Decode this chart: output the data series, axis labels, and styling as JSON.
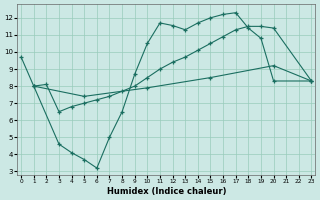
{
  "xlabel": "Humidex (Indice chaleur)",
  "bg_color": "#cce8e4",
  "grid_color": "#99ccbb",
  "line_color": "#1a6e60",
  "xlim": [
    -0.3,
    23.3
  ],
  "ylim": [
    2.8,
    12.8
  ],
  "yticks": [
    3,
    4,
    5,
    6,
    7,
    8,
    9,
    10,
    11,
    12
  ],
  "xticks": [
    0,
    1,
    2,
    3,
    4,
    5,
    6,
    7,
    8,
    9,
    10,
    11,
    12,
    13,
    14,
    15,
    16,
    17,
    18,
    19,
    20,
    21,
    22,
    23
  ],
  "line_outer": {
    "x": [
      0,
      1,
      3,
      4,
      5,
      6,
      7,
      8,
      9,
      10,
      11,
      12,
      13,
      14,
      15,
      16,
      17,
      18,
      19,
      20,
      23
    ],
    "y": [
      9.7,
      8.0,
      4.6,
      4.1,
      3.7,
      3.2,
      5.0,
      6.5,
      8.7,
      10.5,
      11.7,
      11.55,
      11.3,
      11.7,
      12.0,
      12.2,
      12.3,
      11.4,
      10.8,
      8.3,
      8.3
    ]
  },
  "line_middle": {
    "x": [
      1,
      2,
      3,
      4,
      5,
      6,
      7,
      8,
      9,
      10,
      11,
      12,
      13,
      14,
      15,
      16,
      17,
      18,
      19,
      20,
      23
    ],
    "y": [
      8.0,
      8.1,
      6.5,
      6.8,
      7.0,
      7.2,
      7.4,
      7.7,
      8.0,
      8.5,
      9.0,
      9.4,
      9.7,
      10.1,
      10.5,
      10.9,
      11.3,
      11.5,
      11.5,
      11.4,
      8.3
    ]
  },
  "line_bottom": {
    "x": [
      1,
      5,
      10,
      15,
      20,
      23
    ],
    "y": [
      8.0,
      7.4,
      7.9,
      8.5,
      9.2,
      8.3
    ]
  }
}
